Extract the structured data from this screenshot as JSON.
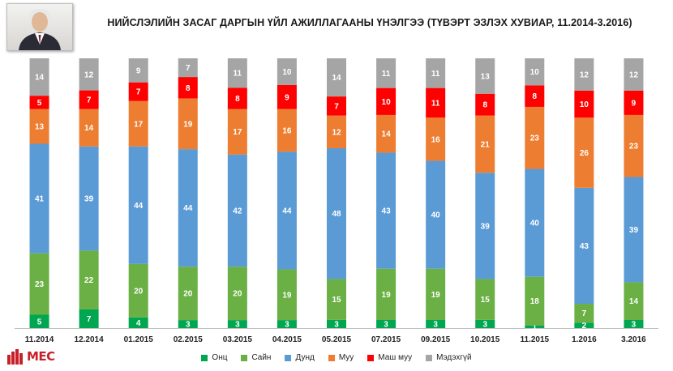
{
  "title": "НИЙСЛЭЛИЙН  ЗАСАГ ДАРГЫН ҮЙЛ АЖИЛЛАГААНЫ ҮНЭЛГЭЭ (ТҮВЭРТ ЭЗЛЭХ ХУВИАР, 11.2014-3.2016)",
  "logo": {
    "text": "MEC",
    "icon": "mec-logo-icon"
  },
  "photo": {
    "icon": "portrait-photo"
  },
  "colors": {
    "Онц": "#00a650",
    "Сайн": "#6ab044",
    "Дунд": "#5b9bd5",
    "Муу": "#ed7d31",
    "Маш муу": "#ff0000",
    "Мэдэхгүй": "#a5a5a5"
  },
  "chart_data": {
    "type": "bar",
    "stacked": true,
    "percent": true,
    "title": "НИЙСЛЭЛИЙН  ЗАСАГ ДАРГЫН ҮЙЛ АЖИЛЛАГААНЫ ҮНЭЛГЭЭ (ТҮВЭРТ ЭЗЛЭХ ХУВИАР, 11.2014-3.2016)",
    "categories": [
      "11.2014",
      "12.2014",
      "01.2015",
      "02.2015",
      "03.2015",
      "04.2015",
      "05.2015",
      "07.2015",
      "09.2015",
      "10.2015",
      "11.2015",
      "1.2016",
      "3.2016"
    ],
    "series": [
      {
        "name": "Онц",
        "values": [
          5,
          7,
          4,
          3,
          3,
          3,
          3,
          3,
          3,
          3,
          1,
          2,
          3
        ]
      },
      {
        "name": "Сайн",
        "values": [
          23,
          22,
          20,
          20,
          20,
          19,
          15,
          19,
          19,
          15,
          18,
          7,
          14
        ]
      },
      {
        "name": "Дунд",
        "values": [
          41,
          39,
          44,
          44,
          42,
          44,
          48,
          43,
          40,
          39,
          40,
          43,
          39
        ]
      },
      {
        "name": "Муу",
        "values": [
          13,
          14,
          17,
          19,
          17,
          16,
          12,
          14,
          16,
          21,
          23,
          26,
          23
        ]
      },
      {
        "name": "Маш муу",
        "values": [
          5,
          7,
          7,
          8,
          8,
          9,
          7,
          10,
          11,
          8,
          8,
          10,
          9
        ]
      },
      {
        "name": "Мэдэхгүй",
        "values": [
          14,
          12,
          9,
          7,
          11,
          10,
          14,
          11,
          11,
          13,
          10,
          12,
          12
        ]
      }
    ],
    "legend_position": "bottom",
    "data_labels": true,
    "grid": false
  }
}
